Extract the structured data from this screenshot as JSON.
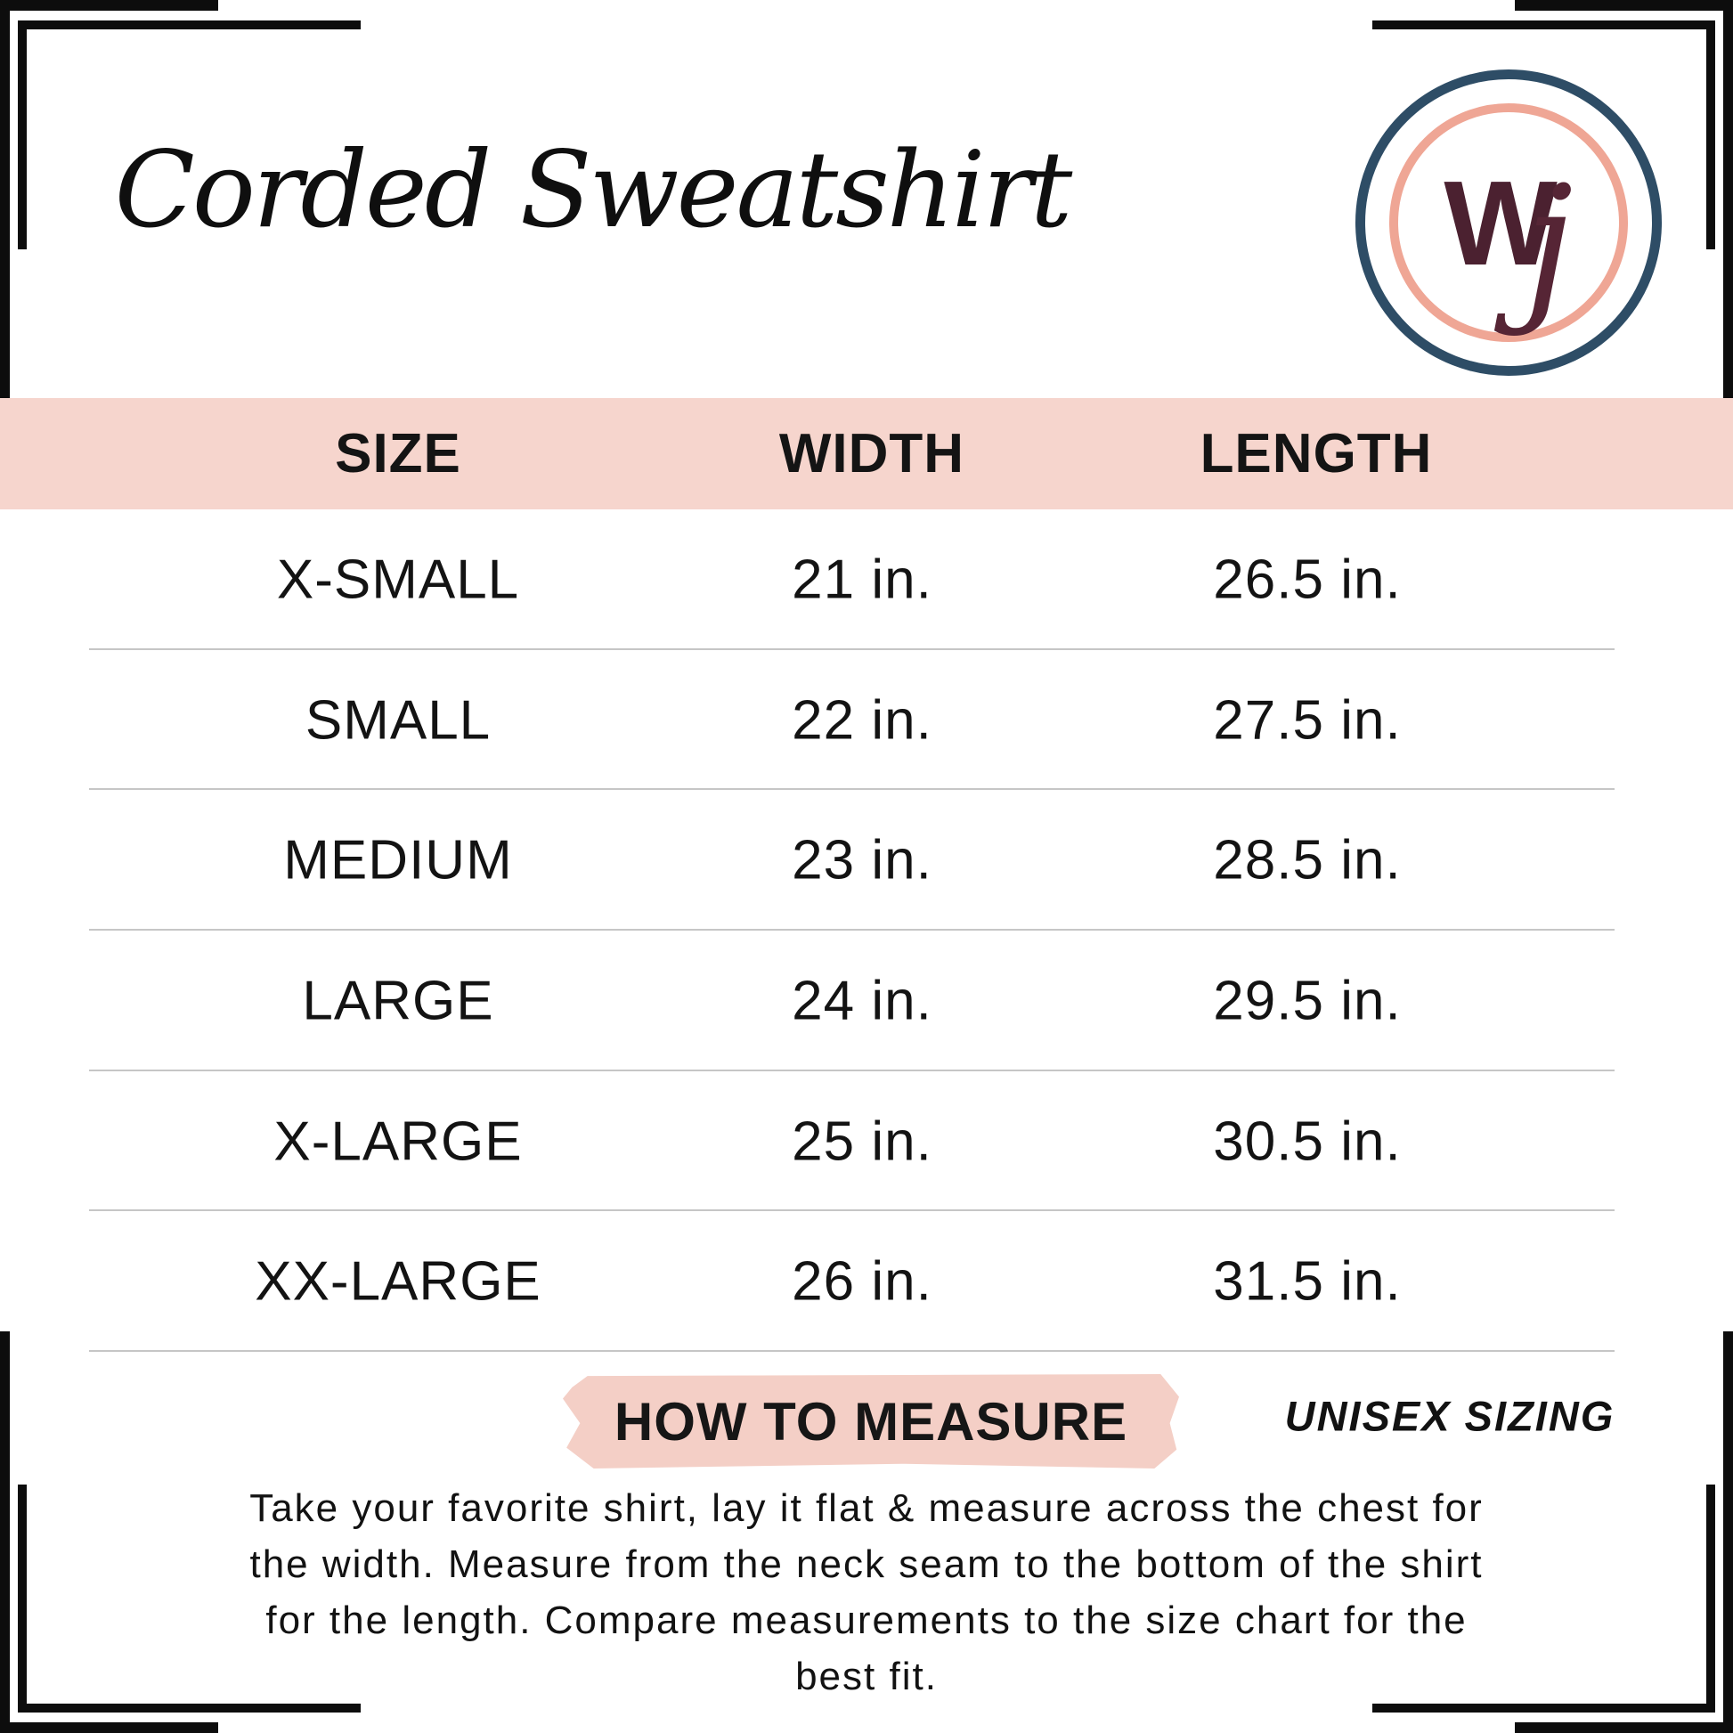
{
  "title": "Corded Sweatshirt",
  "logo": {
    "monogram_first": "W",
    "monogram_second": "j",
    "outer_ring_color": "#2e4d66",
    "inner_ring_color": "#efa695",
    "monogram_color": "#4b2130"
  },
  "size_chart": {
    "band_color": "#f6d5cd",
    "separator_color": "#c6c6c6",
    "columns": [
      "SIZE",
      "WIDTH",
      "LENGTH"
    ],
    "rows": [
      {
        "size": "X-SMALL",
        "width": "21 in.",
        "length": "26.5 in."
      },
      {
        "size": "SMALL",
        "width": "22 in.",
        "length": "27.5 in."
      },
      {
        "size": "MEDIUM",
        "width": "23 in.",
        "length": "28.5 in."
      },
      {
        "size": "LARGE",
        "width": "24 in.",
        "length": "29.5 in."
      },
      {
        "size": "X-LARGE",
        "width": "25 in.",
        "length": "30.5 in."
      },
      {
        "size": "XX-LARGE",
        "width": "26 in.",
        "length": "31.5 in."
      }
    ]
  },
  "measure": {
    "heading": "HOW TO MEASURE",
    "highlight_color": "#f4cfc6",
    "note": "UNISEX SIZING",
    "lines": [
      "Take your favorite shirt, lay it flat & measure across the chest for",
      "the width. Measure from the neck seam to the bottom of the shirt",
      "for the length. Compare measurements to the size chart for the",
      "best fit."
    ]
  }
}
